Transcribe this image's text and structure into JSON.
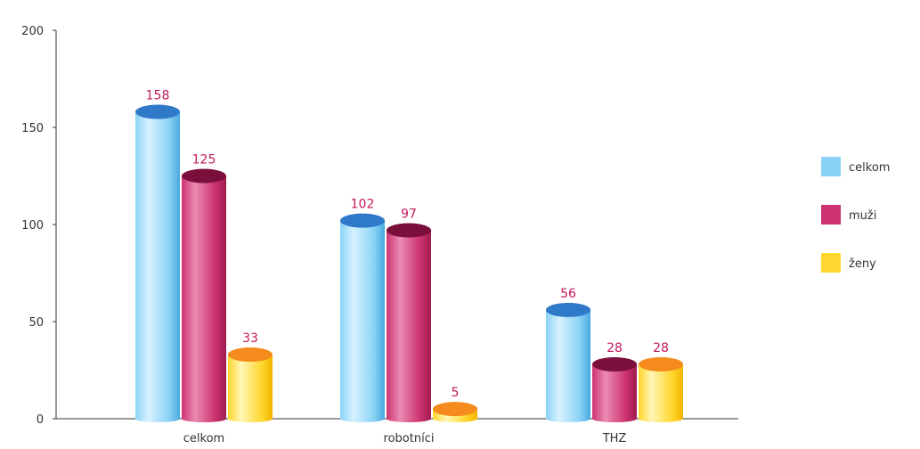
{
  "chart_data": {
    "type": "bar",
    "categories": [
      "celkom",
      "robotníci",
      "THZ"
    ],
    "series": [
      {
        "name": "celkom",
        "values": [
          158,
          102,
          56
        ]
      },
      {
        "name": "muži",
        "values": [
          125,
          97,
          28
        ]
      },
      {
        "name": "ženy",
        "values": [
          33,
          5,
          28
        ]
      }
    ],
    "data_labels": [
      [
        "158",
        "102",
        "56"
      ],
      [
        "125",
        "97",
        "28"
      ],
      [
        "33",
        "5",
        "28"
      ]
    ],
    "yticks": [
      "0",
      "50",
      "100",
      "150",
      "200"
    ],
    "ylim": [
      0,
      200
    ],
    "grid": false,
    "legend_position": "right",
    "colors": {
      "series": [
        {
          "light": "#d7f2ff",
          "mid": "#8bd3f6",
          "dark": "#4aa9e0",
          "top": "#2f79c9"
        },
        {
          "light": "#ea8bb2",
          "mid": "#cc336f",
          "dark": "#9e1c4f",
          "top": "#7b0f3b"
        },
        {
          "light": "#fff6b5",
          "mid": "#ffd72f",
          "dark": "#f2b300",
          "top": "#f48b1c"
        }
      ],
      "data_label": "#c2185b",
      "axis": "#333333"
    }
  }
}
